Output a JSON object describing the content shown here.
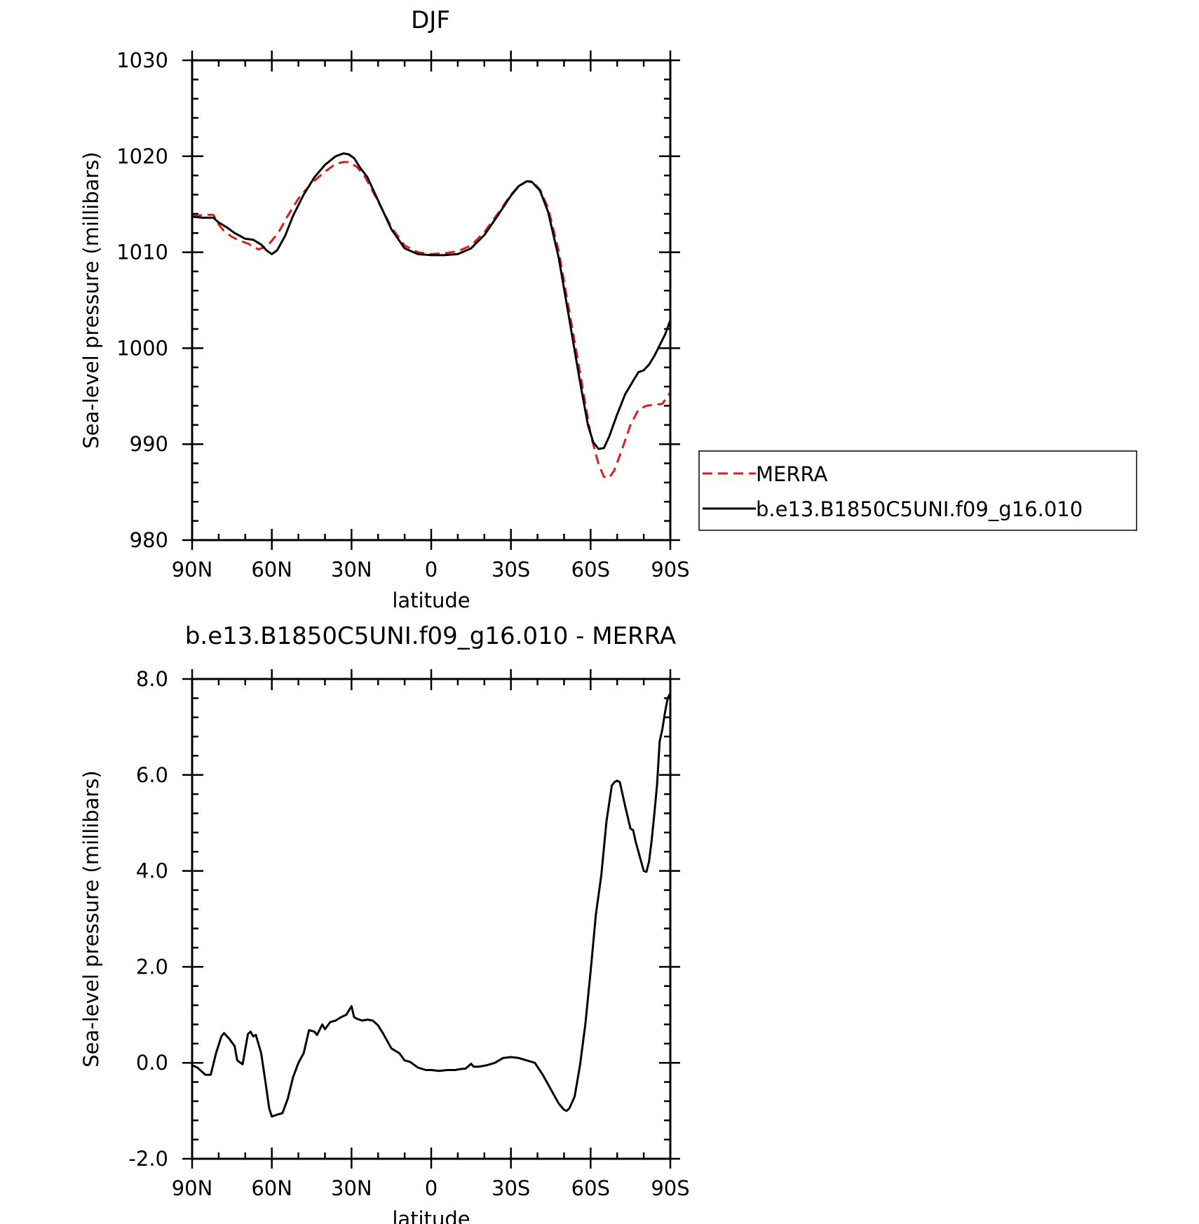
{
  "chart_data": [
    {
      "type": "line",
      "title": "DJF",
      "xlabel": "latitude",
      "ylabel": "Sea-level pressure (millibars)",
      "xlim": [
        90,
        -90
      ],
      "ylim": [
        980,
        1030
      ],
      "x_tick_values": [
        90,
        60,
        30,
        0,
        -30,
        -60,
        -90
      ],
      "x_tick_labels": [
        "90N",
        "60N",
        "30N",
        "0",
        "30S",
        "60S",
        "90S"
      ],
      "y_tick_values": [
        980,
        990,
        1000,
        1010,
        1020,
        1030
      ],
      "y_tick_labels": [
        "980",
        "990",
        "1000",
        "1010",
        "1020",
        "1030"
      ],
      "grid": false,
      "legend_position": "right",
      "series": [
        {
          "name": "MERRA",
          "color": "#e31a1c",
          "dash": "dashed",
          "x": [
            90,
            84,
            82,
            80,
            78,
            75,
            72,
            69,
            65,
            62,
            60,
            57,
            54,
            50,
            45,
            40,
            36,
            33,
            31,
            28,
            25,
            20,
            15,
            10,
            5,
            0,
            -5,
            -10,
            -15,
            -20,
            -25,
            -30,
            -33,
            -36,
            -38,
            -41,
            -44,
            -48,
            -52,
            -56,
            -60,
            -63,
            -65,
            -67,
            -69,
            -72,
            -75,
            -78,
            -81,
            -84,
            -87,
            -90
          ],
          "y": [
            1013.8,
            1013.9,
            1013.9,
            1012.9,
            1012.2,
            1011.6,
            1011.2,
            1010.9,
            1010.3,
            1010.6,
            1011.2,
            1012.3,
            1013.8,
            1015.6,
            1017.2,
            1018.4,
            1019.2,
            1019.4,
            1019.4,
            1018.9,
            1017.9,
            1015.3,
            1012.6,
            1010.7,
            1010.0,
            1009.8,
            1009.9,
            1010.1,
            1010.7,
            1012.1,
            1014.0,
            1016.0,
            1016.9,
            1017.4,
            1017.4,
            1016.5,
            1014.6,
            1010.1,
            1003.8,
            997.5,
            991.0,
            987.9,
            986.6,
            986.5,
            987.3,
            989.6,
            992.0,
            993.6,
            994.0,
            994.1,
            994.2,
            995.4
          ]
        },
        {
          "name": "b.e13.B1850C5UNI.f09_g16.010",
          "color": "#000000",
          "dash": "solid",
          "x": [
            90,
            86,
            82,
            80,
            77,
            74,
            70,
            67,
            64,
            62,
            60,
            58,
            55,
            52,
            48,
            44,
            40,
            36,
            33,
            31,
            29,
            27,
            24,
            20,
            15,
            10,
            5,
            0,
            -5,
            -10,
            -15,
            -20,
            -25,
            -30,
            -33,
            -36,
            -38,
            -41,
            -44,
            -48,
            -52,
            -56,
            -59,
            -61,
            -63,
            -65,
            -67,
            -70,
            -73,
            -76,
            -78,
            -80,
            -82,
            -84,
            -86,
            -88,
            -90
          ],
          "y": [
            1013.7,
            1013.6,
            1013.6,
            1013.1,
            1012.6,
            1012.0,
            1011.4,
            1011.3,
            1010.8,
            1010.2,
            1009.8,
            1010.2,
            1011.7,
            1013.8,
            1016.0,
            1017.8,
            1019.1,
            1020.0,
            1020.3,
            1020.2,
            1019.8,
            1018.9,
            1017.8,
            1015.4,
            1012.4,
            1010.4,
            1009.8,
            1009.7,
            1009.7,
            1009.8,
            1010.4,
            1011.8,
            1013.8,
            1015.9,
            1016.9,
            1017.4,
            1017.3,
            1016.4,
            1014.2,
            1009.4,
            1003.0,
            996.5,
            992.0,
            990.2,
            989.5,
            989.6,
            990.8,
            993.1,
            995.2,
            996.6,
            997.5,
            997.7,
            998.3,
            999.2,
            1000.3,
            1001.4,
            1002.9
          ]
        }
      ]
    },
    {
      "type": "line",
      "title": "b.e13.B1850C5UNI.f09_g16.010 - MERRA",
      "xlabel": "latitude",
      "ylabel": "Sea-level pressure (millibars)",
      "xlim": [
        90,
        -90
      ],
      "ylim": [
        -2.0,
        8.0
      ],
      "x_tick_values": [
        90,
        60,
        30,
        0,
        -30,
        -60,
        -90
      ],
      "x_tick_labels": [
        "90N",
        "60N",
        "30N",
        "0",
        "30S",
        "60S",
        "90S"
      ],
      "y_tick_values": [
        -2.0,
        0.0,
        2.0,
        4.0,
        6.0,
        8.0
      ],
      "y_tick_labels": [
        "-2.0",
        "0.0",
        "2.0",
        "4.0",
        "6.0",
        "8.0"
      ],
      "grid": false,
      "series": [
        {
          "color": "#000000",
          "dash": "solid",
          "x": [
            90,
            88,
            85,
            83,
            81,
            79,
            78,
            76,
            74,
            73,
            71,
            69,
            68,
            67,
            66,
            64,
            62,
            61,
            60,
            58,
            56,
            54,
            52,
            50,
            48,
            46,
            44,
            43,
            41,
            40,
            38,
            36,
            34,
            32,
            30,
            29,
            28,
            26,
            24,
            22,
            20,
            18,
            15,
            12,
            10,
            8,
            5,
            2,
            0,
            -3,
            -6,
            -9,
            -11,
            -13,
            -15,
            -16,
            -18,
            -21,
            -24,
            -27,
            -30,
            -33,
            -36,
            -39,
            -42,
            -45,
            -48,
            -50,
            -51,
            -52,
            -54,
            -56,
            -58,
            -60,
            -62,
            -64,
            -66,
            -68,
            -69,
            -70,
            -71,
            -72,
            -73,
            -75,
            -76,
            -77,
            -79,
            -80,
            -81,
            -82,
            -83,
            -84,
            -85,
            -86,
            -87,
            -88,
            -89,
            -90
          ],
          "y": [
            -0.05,
            -0.1,
            -0.25,
            -0.25,
            0.2,
            0.55,
            0.62,
            0.5,
            0.35,
            0.05,
            -0.03,
            0.6,
            0.65,
            0.55,
            0.58,
            0.2,
            -0.55,
            -0.95,
            -1.12,
            -1.08,
            -1.05,
            -0.75,
            -0.3,
            0.0,
            0.2,
            0.68,
            0.65,
            0.58,
            0.8,
            0.7,
            0.85,
            0.88,
            0.95,
            1.0,
            1.18,
            0.95,
            0.92,
            0.88,
            0.9,
            0.88,
            0.78,
            0.6,
            0.3,
            0.2,
            0.05,
            0.02,
            -0.1,
            -0.15,
            -0.15,
            -0.17,
            -0.15,
            -0.15,
            -0.13,
            -0.12,
            -0.02,
            -0.08,
            -0.08,
            -0.05,
            0.0,
            0.1,
            0.12,
            0.1,
            0.05,
            0.0,
            -0.25,
            -0.55,
            -0.85,
            -0.98,
            -1.0,
            -0.95,
            -0.7,
            -0.05,
            0.8,
            1.9,
            3.1,
            3.9,
            5.05,
            5.78,
            5.85,
            5.88,
            5.85,
            5.6,
            5.35,
            4.88,
            4.85,
            4.6,
            4.2,
            4.0,
            3.98,
            4.2,
            4.65,
            5.2,
            5.8,
            6.7,
            6.95,
            7.3,
            7.6,
            7.7
          ]
        }
      ]
    }
  ]
}
